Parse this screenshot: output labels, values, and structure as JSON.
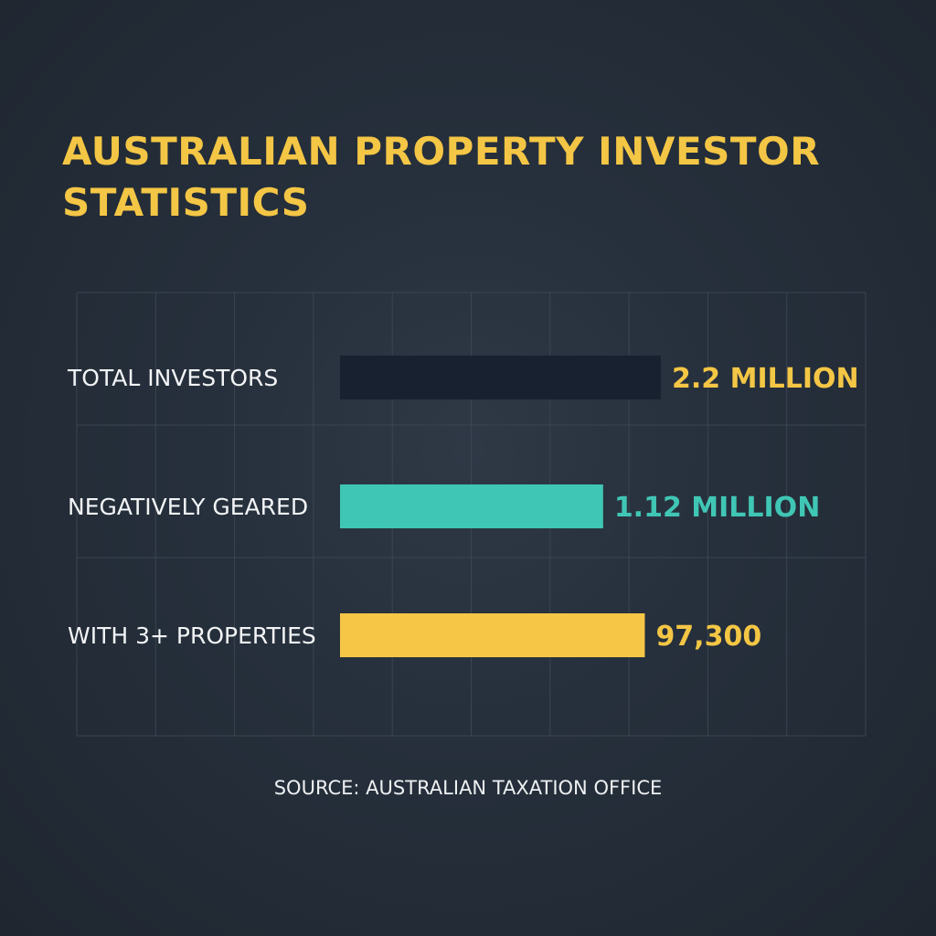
{
  "title": "AUSTRALIAN PROPERTY INVESTOR STATISTICS",
  "source": "SOURCE: AUSTRALIAN TAXATION OFFICE",
  "colors": {
    "background": "#26303c",
    "title": "#f4c645",
    "grid": "#3a4552",
    "category_text": "#f2f4f6"
  },
  "chart_data": {
    "type": "bar",
    "orientation": "horizontal",
    "categories": [
      "TOTAL INVESTORS",
      "NEGATIVELY GEARED",
      "WITH 3+ PROPERTIES"
    ],
    "bar_fill": [
      1.0,
      0.82,
      0.95
    ],
    "value_labels": [
      "2.2 MILLION",
      "1.12 MILLION",
      "97,300"
    ],
    "bar_colors": [
      "#172130",
      "#40c6b5",
      "#f6c646"
    ],
    "label_colors": [
      "#f4c645",
      "#40c6b5",
      "#f4c645"
    ],
    "title": "AUSTRALIAN PROPERTY INVESTOR STATISTICS",
    "xlabel": "",
    "ylabel": "",
    "grid": true,
    "legend": "none"
  }
}
